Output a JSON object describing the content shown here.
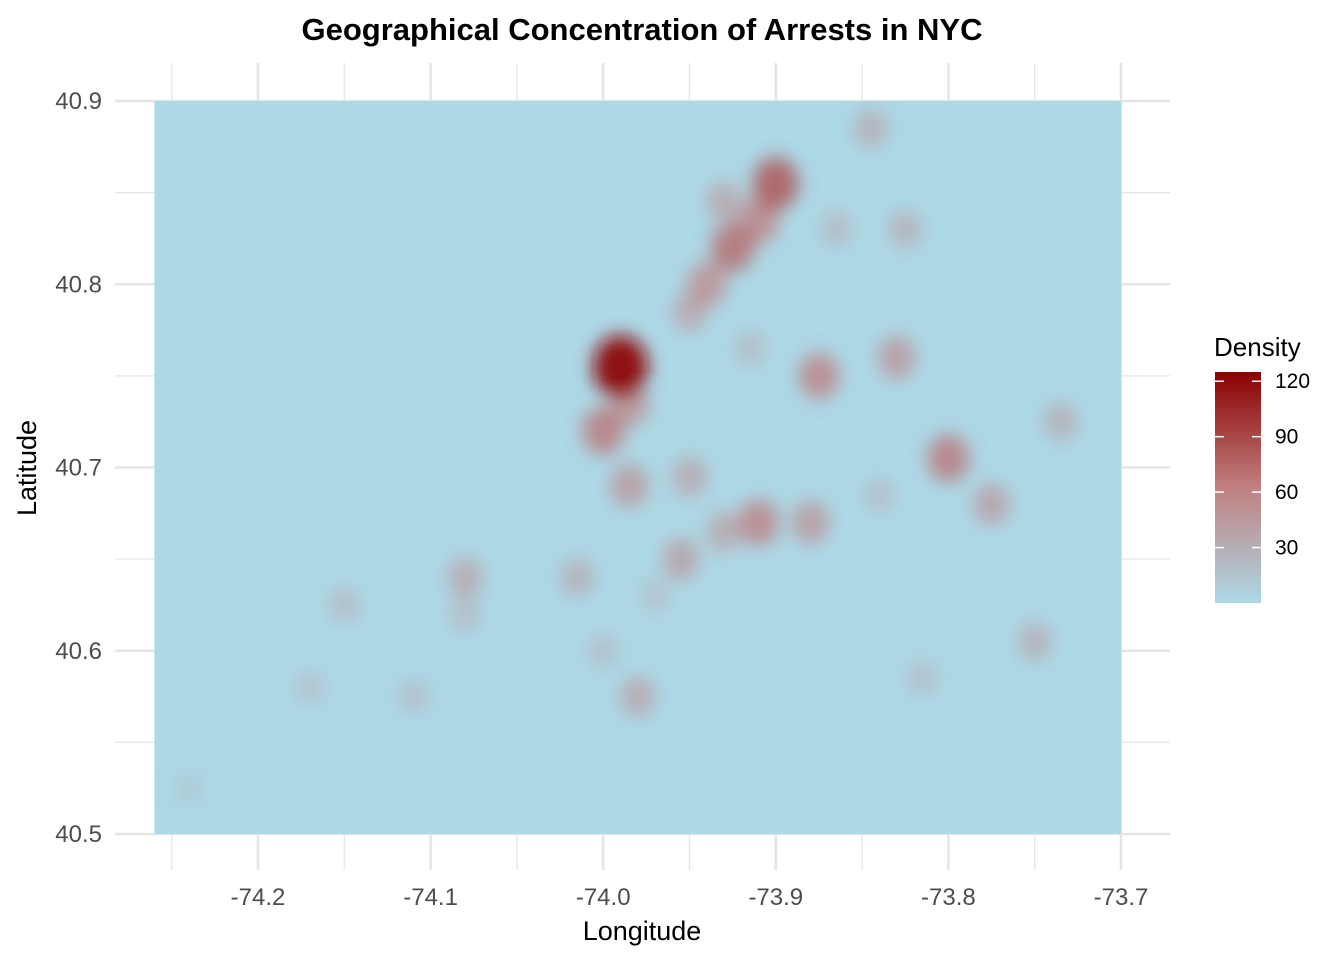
{
  "chart_data": {
    "type": "heatmap",
    "title": "Geographical Concentration of Arrests in NYC",
    "xlabel": "Longitude",
    "ylabel": "Latitude",
    "xlim": [
      -74.26,
      -73.7
    ],
    "ylim": [
      40.5,
      40.9
    ],
    "x_ticks": [
      -74.2,
      -74.1,
      -74.0,
      -73.9,
      -73.8,
      -73.7
    ],
    "x_tick_labels": [
      "-74.2",
      "-74.1",
      "-74.0",
      "-73.9",
      "-73.8",
      "-73.7"
    ],
    "y_ticks": [
      40.5,
      40.6,
      40.7,
      40.8,
      40.9
    ],
    "y_tick_labels": [
      "40.5",
      "40.6",
      "40.7",
      "40.8",
      "40.9"
    ],
    "grid": true,
    "legend": {
      "title": "Density",
      "placement": "right",
      "ticks": [
        30,
        60,
        90,
        120
      ],
      "tick_labels": [
        "30",
        "60",
        "90",
        "120"
      ],
      "range": [
        0,
        125
      ]
    },
    "colors": {
      "low": "#add8e6",
      "high": "#8b0000",
      "grid": "#e5e5e5"
    },
    "hotspots": [
      {
        "lon": -73.99,
        "lat": 40.755,
        "density": 120
      },
      {
        "lon": -74.0,
        "lat": 40.72,
        "density": 70
      },
      {
        "lon": -73.985,
        "lat": 40.735,
        "density": 60
      },
      {
        "lon": -73.9,
        "lat": 40.855,
        "density": 85
      },
      {
        "lon": -73.91,
        "lat": 40.835,
        "density": 65
      },
      {
        "lon": -73.925,
        "lat": 40.82,
        "density": 75
      },
      {
        "lon": -73.94,
        "lat": 40.8,
        "density": 60
      },
      {
        "lon": -73.95,
        "lat": 40.785,
        "density": 45
      },
      {
        "lon": -73.93,
        "lat": 40.845,
        "density": 45
      },
      {
        "lon": -73.875,
        "lat": 40.75,
        "density": 65
      },
      {
        "lon": -73.83,
        "lat": 40.76,
        "density": 55
      },
      {
        "lon": -73.8,
        "lat": 40.705,
        "density": 70
      },
      {
        "lon": -73.775,
        "lat": 40.68,
        "density": 50
      },
      {
        "lon": -73.91,
        "lat": 40.67,
        "density": 65
      },
      {
        "lon": -73.88,
        "lat": 40.67,
        "density": 55
      },
      {
        "lon": -73.93,
        "lat": 40.665,
        "density": 45
      },
      {
        "lon": -73.95,
        "lat": 40.695,
        "density": 45
      },
      {
        "lon": -73.985,
        "lat": 40.69,
        "density": 55
      },
      {
        "lon": -73.955,
        "lat": 40.65,
        "density": 50
      },
      {
        "lon": -74.015,
        "lat": 40.64,
        "density": 40
      },
      {
        "lon": -73.98,
        "lat": 40.575,
        "density": 45
      },
      {
        "lon": -74.08,
        "lat": 40.64,
        "density": 45
      },
      {
        "lon": -74.08,
        "lat": 40.62,
        "density": 30
      },
      {
        "lon": -74.15,
        "lat": 40.625,
        "density": 30
      },
      {
        "lon": -74.11,
        "lat": 40.575,
        "density": 28
      },
      {
        "lon": -74.17,
        "lat": 40.58,
        "density": 25
      },
      {
        "lon": -73.75,
        "lat": 40.605,
        "density": 40
      },
      {
        "lon": -73.815,
        "lat": 40.585,
        "density": 28
      },
      {
        "lon": -73.735,
        "lat": 40.725,
        "density": 40
      },
      {
        "lon": -73.845,
        "lat": 40.885,
        "density": 40
      },
      {
        "lon": -73.825,
        "lat": 40.83,
        "density": 38
      },
      {
        "lon": -73.865,
        "lat": 40.83,
        "density": 32
      },
      {
        "lon": -73.915,
        "lat": 40.765,
        "density": 30
      },
      {
        "lon": -74.0,
        "lat": 40.6,
        "density": 28
      },
      {
        "lon": -73.84,
        "lat": 40.685,
        "density": 28
      },
      {
        "lon": -73.97,
        "lat": 40.63,
        "density": 25
      },
      {
        "lon": -74.24,
        "lat": 40.525,
        "density": 18
      }
    ]
  }
}
